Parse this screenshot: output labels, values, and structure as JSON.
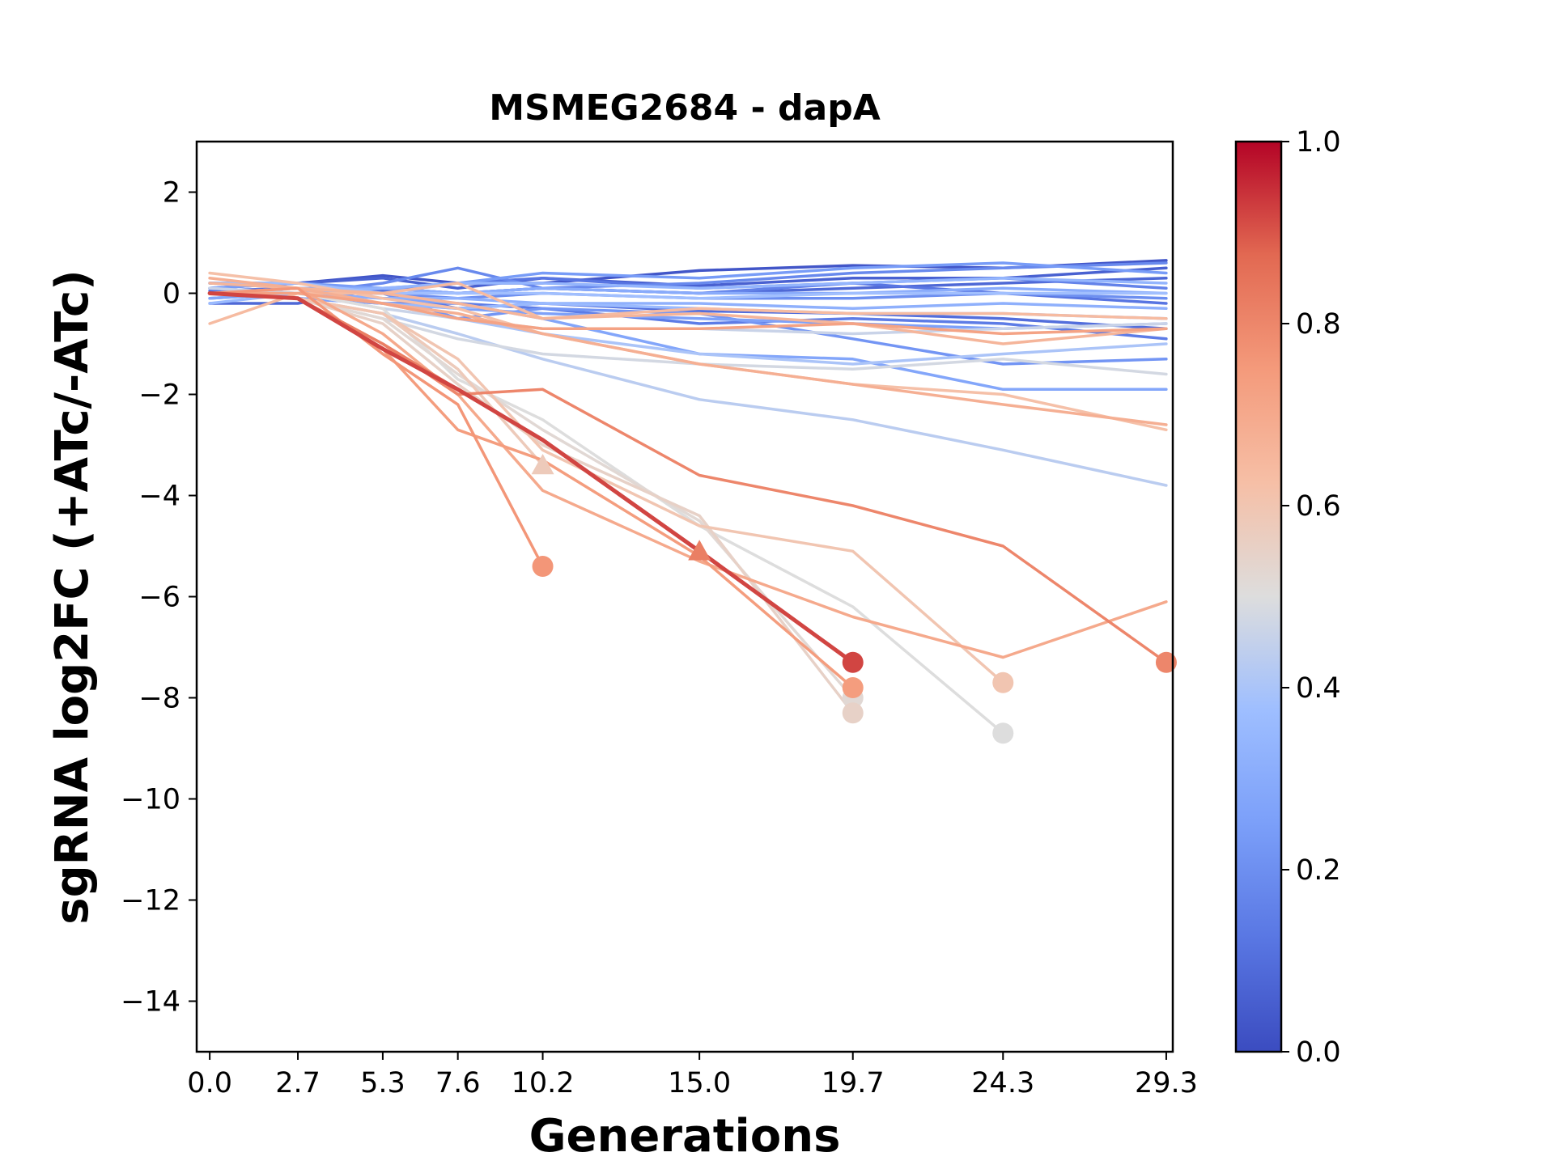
{
  "chart_data": {
    "type": "line",
    "title": "MSMEG2684 - dapA",
    "xlabel": "Generations",
    "ylabel": "sgRNA log2FC (+ATc/-ATc)",
    "x": [
      0.0,
      2.7,
      5.3,
      7.6,
      10.2,
      15.0,
      19.7,
      24.3,
      29.3
    ],
    "x_tick_labels": [
      "0.0",
      "2.7",
      "5.3",
      "7.6",
      "10.2",
      "15.0",
      "19.7",
      "24.3",
      "29.3"
    ],
    "ylim": [
      -15,
      3
    ],
    "y_ticks": [
      2,
      0,
      -2,
      -4,
      -6,
      -8,
      -10,
      -12,
      -14
    ],
    "y_tick_labels": [
      "2",
      "−2",
      "−4",
      "−6",
      "−8",
      "−10",
      "−12",
      "−14"
    ],
    "y_tick_labels_full": [
      "2",
      "0",
      "−2",
      "−4",
      "−6",
      "−8",
      "−10",
      "−12",
      "−14"
    ],
    "colorbar": {
      "colormap": "coolwarm",
      "range": [
        0.0,
        1.0
      ],
      "tick_labels": [
        "0.0",
        "0.2",
        "0.4",
        "0.6",
        "0.8",
        "1.0"
      ],
      "tick_values": [
        0.0,
        0.2,
        0.4,
        0.6,
        0.8,
        1.0
      ]
    },
    "grid": false,
    "legend": "none",
    "series": [
      {
        "c": 0.03,
        "values": [
          0.2,
          0.2,
          0.35,
          0.2,
          0.2,
          0.45,
          0.55,
          0.5,
          0.65
        ]
      },
      {
        "c": 0.06,
        "values": [
          0.1,
          0.2,
          0.3,
          0.1,
          0.3,
          0.15,
          0.3,
          0.3,
          0.5
        ]
      },
      {
        "c": 0.08,
        "values": [
          -0.2,
          -0.2,
          0.1,
          0.0,
          0.1,
          0.0,
          0.1,
          0.2,
          0.3
        ]
      },
      {
        "c": 0.1,
        "values": [
          0.0,
          0.0,
          0.0,
          -0.3,
          -0.2,
          -0.35,
          -0.4,
          -0.5,
          -0.7
        ]
      },
      {
        "c": 0.12,
        "values": [
          0.05,
          0.1,
          0.05,
          0.2,
          0.3,
          0.1,
          0.2,
          0.0,
          -0.2
        ]
      },
      {
        "c": 0.14,
        "values": [
          0.0,
          -0.1,
          -0.2,
          -0.2,
          -0.3,
          -0.6,
          -0.5,
          -0.6,
          -0.9
        ]
      },
      {
        "c": 0.16,
        "values": [
          0.2,
          0.1,
          0.1,
          0.0,
          0.1,
          0.0,
          0.2,
          0.3,
          0.1
        ]
      },
      {
        "c": 0.18,
        "values": [
          -0.1,
          0.0,
          0.2,
          0.5,
          0.1,
          0.2,
          0.4,
          0.5,
          0.6
        ]
      },
      {
        "c": 0.2,
        "values": [
          0.1,
          0.2,
          0.0,
          -0.1,
          0.0,
          -0.1,
          -0.1,
          0.0,
          -0.1
        ]
      },
      {
        "c": 0.22,
        "values": [
          0.0,
          0.1,
          0.0,
          -0.5,
          -0.3,
          -0.4,
          -0.9,
          -1.4,
          -1.3
        ]
      },
      {
        "c": 0.24,
        "values": [
          0.1,
          0.2,
          0.1,
          0.2,
          0.4,
          0.3,
          0.5,
          0.6,
          0.4
        ]
      },
      {
        "c": 0.26,
        "values": [
          0.0,
          -0.1,
          -0.2,
          -0.3,
          -0.4,
          -0.5,
          -0.6,
          -0.7,
          -0.6
        ]
      },
      {
        "c": 0.28,
        "values": [
          -0.1,
          0.0,
          -0.1,
          -0.2,
          -0.5,
          -1.2,
          -1.3,
          -1.9,
          -1.9
        ]
      },
      {
        "c": 0.3,
        "values": [
          0.0,
          0.1,
          0.1,
          0.0,
          0.1,
          0.0,
          0.0,
          0.1,
          0.0
        ]
      },
      {
        "c": 0.32,
        "values": [
          0.1,
          0.0,
          -0.1,
          -0.1,
          -0.2,
          -0.2,
          -0.3,
          -0.2,
          -0.3
        ]
      },
      {
        "c": 0.34,
        "values": [
          0.0,
          0.0,
          0.1,
          0.2,
          0.2,
          0.1,
          0.2,
          0.3,
          0.2
        ]
      },
      {
        "c": 0.36,
        "values": [
          -0.2,
          0.0,
          -0.2,
          -0.3,
          -0.2,
          -0.3,
          -0.4,
          -0.4,
          -0.5
        ]
      },
      {
        "c": 0.38,
        "values": [
          0.2,
          0.2,
          0.0,
          0.0,
          0.0,
          -0.1,
          0.0,
          0.0,
          0.0
        ]
      },
      {
        "c": 0.4,
        "values": [
          0.0,
          0.0,
          -0.2,
          -0.5,
          -0.8,
          -1.2,
          -1.4,
          -1.2,
          -1.0
        ]
      },
      {
        "c": 0.43,
        "values": [
          0.0,
          -0.1,
          -0.4,
          -0.8,
          -1.3,
          -2.1,
          -2.5,
          -3.1,
          -3.8
        ]
      },
      {
        "c": 0.46,
        "values": [
          0.1,
          0.0,
          -0.3,
          -0.5,
          -0.7,
          -0.7,
          -0.8,
          -0.7,
          -0.6
        ]
      },
      {
        "c": 0.48,
        "values": [
          0.0,
          -0.1,
          -0.5,
          -0.9,
          -1.2,
          -1.4,
          -1.5,
          -1.3,
          -1.6
        ]
      },
      {
        "c": 0.5,
        "values": [
          0.0,
          0.0,
          -0.3,
          -1.7,
          -2.5,
          -4.6,
          -6.2,
          -8.7,
          null
        ],
        "end": "circle"
      },
      {
        "c": 0.52,
        "values": [
          0.0,
          -0.1,
          -0.5,
          -1.6,
          -2.7,
          -4.5,
          -8.0,
          null,
          null
        ],
        "end": "circle"
      },
      {
        "c": 0.55,
        "values": [
          0.0,
          -0.1,
          -0.6,
          -1.8,
          -3.0,
          -4.4,
          -8.3,
          null,
          null
        ],
        "end": "circle"
      },
      {
        "c": 0.58,
        "values": [
          0.0,
          -0.1,
          -0.4,
          -1.5,
          -3.4,
          null,
          null,
          null,
          null
        ],
        "end": "triangle"
      },
      {
        "c": 0.6,
        "values": [
          0.0,
          -0.1,
          -0.4,
          -1.3,
          -3.1,
          -4.6,
          -5.1,
          -7.7,
          null
        ],
        "end": "circle"
      },
      {
        "c": 0.62,
        "values": [
          0.4,
          0.2,
          -0.1,
          -0.3,
          -0.8,
          -1.4,
          -1.8,
          -2.0,
          -2.7
        ]
      },
      {
        "c": 0.64,
        "values": [
          -0.6,
          0.0,
          0.0,
          0.2,
          -0.5,
          -0.3,
          -0.4,
          -0.4,
          -0.5
        ]
      },
      {
        "c": 0.66,
        "values": [
          0.2,
          0.1,
          0.0,
          -0.2,
          -0.5,
          -0.4,
          -0.6,
          -1.0,
          -0.7
        ]
      },
      {
        "c": 0.68,
        "values": [
          0.3,
          0.1,
          -0.2,
          -0.4,
          -0.8,
          -1.4,
          -1.8,
          -2.2,
          -2.6
        ]
      },
      {
        "c": 0.7,
        "values": [
          0.0,
          0.1,
          -0.8,
          -2.0,
          -3.9,
          -5.3,
          -6.4,
          -7.2,
          -6.1
        ]
      },
      {
        "c": 0.72,
        "values": [
          0.0,
          0.0,
          -0.2,
          -0.5,
          -0.7,
          -0.7,
          -0.6,
          -0.8,
          -0.7
        ]
      },
      {
        "c": 0.74,
        "values": [
          0.0,
          -0.1,
          -1.1,
          -2.7,
          -3.3,
          -5.2,
          -7.8,
          null,
          null
        ],
        "end": "circle"
      },
      {
        "c": 0.76,
        "values": [
          0.0,
          0.1,
          -1.2,
          -2.2,
          -5.4,
          null,
          null,
          null,
          null
        ],
        "end": "circle"
      },
      {
        "c": 0.8,
        "values": [
          0.0,
          -0.1,
          -1.0,
          -2.0,
          -1.9,
          -3.6,
          -4.2,
          -5.0,
          -7.3
        ],
        "end": "circle"
      },
      {
        "c": 0.82,
        "values": [
          0.0,
          -0.1,
          -1.0,
          -1.9,
          -2.9,
          -5.1,
          null,
          null,
          null
        ],
        "end": "triangle"
      },
      {
        "c": 0.92,
        "values": [
          0.0,
          -0.1,
          -1.1,
          -1.9,
          -2.9,
          -5.1,
          -7.3,
          null,
          null
        ],
        "end": "circle",
        "thick": true
      }
    ]
  }
}
